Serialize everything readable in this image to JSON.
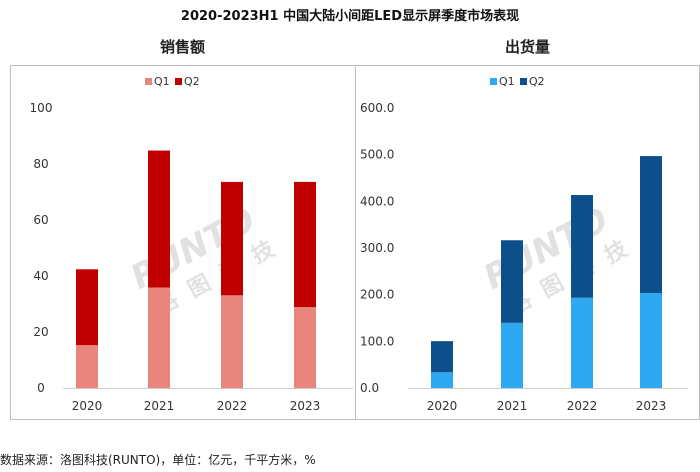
{
  "title": "2020-2023H1 中国大陆小间距LED显示屏季度市场表现",
  "footer": "数据来源：洛图科技(RUNTO)，单位：亿元，千平方米，%",
  "watermark": {
    "brand": "RUNTO",
    "cn": "洛图科技"
  },
  "chart_data": [
    {
      "type": "bar",
      "stacked": true,
      "title": "销售额",
      "categories": [
        "2020",
        "2021",
        "2022",
        "2023"
      ],
      "series": [
        {
          "name": "Q1",
          "color": "#e8857c",
          "values": [
            15.3,
            35.9,
            33.1,
            28.9
          ]
        },
        {
          "name": "Q2",
          "color": "#c00000",
          "values": [
            27.1,
            48.9,
            40.5,
            44.7
          ]
        }
      ],
      "ylim": [
        0,
        100
      ],
      "yticks": [
        0,
        20,
        40,
        60,
        80,
        100
      ],
      "ytick_labels": [
        "0",
        "20",
        "40",
        "60",
        "80",
        "100"
      ],
      "xlabel": "",
      "ylabel": "",
      "legend": "top-center",
      "grid": false
    },
    {
      "type": "bar",
      "stacked": true,
      "title": "出货量",
      "categories": [
        "2020",
        "2021",
        "2022",
        "2023"
      ],
      "series": [
        {
          "name": "Q1",
          "color": "#2ea8f0",
          "values": [
            33.7,
            139.6,
            193.4,
            203.6
          ]
        },
        {
          "name": "Q2",
          "color": "#0d4f8b",
          "values": [
            66.7,
            177.0,
            220.1,
            293.4
          ]
        }
      ],
      "ylim": [
        0,
        600
      ],
      "yticks": [
        0,
        100,
        200,
        300,
        400,
        500,
        600
      ],
      "ytick_labels": [
        "0.0",
        "100.0",
        "200.0",
        "300.0",
        "400.0",
        "500.0",
        "600.0"
      ],
      "xlabel": "",
      "ylabel": "",
      "legend": "top-center",
      "grid": false
    }
  ]
}
